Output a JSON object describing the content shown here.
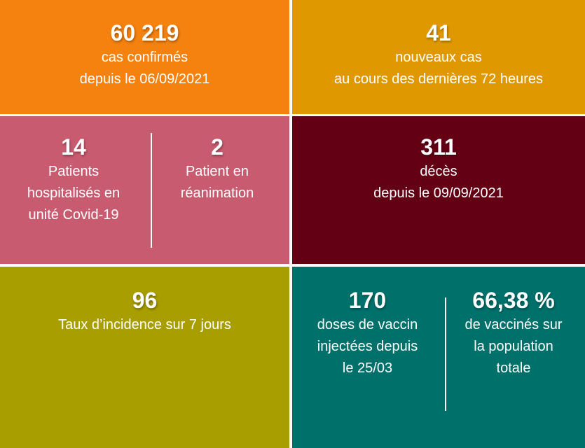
{
  "colors": {
    "orange": "#F5820F",
    "gold": "#E09800",
    "pink": "#C95B70",
    "maroon": "#640014",
    "olive": "#A89E00",
    "teal": "#00706B"
  },
  "confirmed": {
    "value": "60 219",
    "line1": "cas confirmés",
    "line2": "depuis le 06/09/2021"
  },
  "new_cases": {
    "value": "41",
    "line1": "nouveaux cas",
    "line2": "au cours des dernières 72 heures"
  },
  "hospitalized": {
    "value": "14",
    "line1": "Patients",
    "line2": "hospitalisés en",
    "line3": "unité Covid-19"
  },
  "icu": {
    "value": "2",
    "line1": "Patient en",
    "line2": "réanimation"
  },
  "deaths": {
    "value": "311",
    "line1": "décès",
    "line2": "depuis le 09/09/2021"
  },
  "incidence": {
    "value": "96",
    "line1": "Taux d’incidence sur 7 jours"
  },
  "doses": {
    "value": "170",
    "line1": "doses de vaccin",
    "line2": "injectées depuis",
    "line3": "le 25/03"
  },
  "vaccinated": {
    "value": "66,38 %",
    "line1": "de vaccinés sur",
    "line2": "la population",
    "line3": "totale"
  }
}
